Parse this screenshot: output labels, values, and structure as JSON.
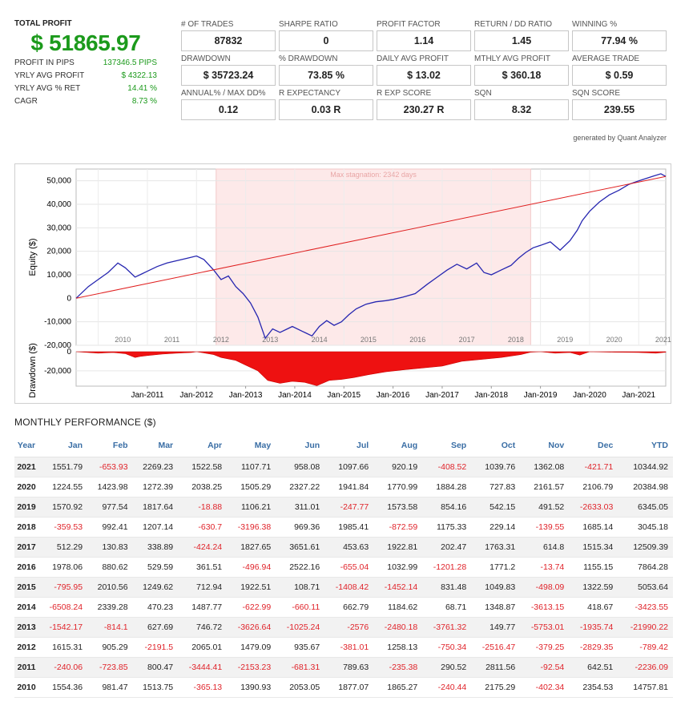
{
  "summary": {
    "total_label": "TOTAL PROFIT",
    "total_value": "$ 51865.97",
    "rows": [
      {
        "label": "PROFIT IN PIPS",
        "value": "137346.5 PIPS"
      },
      {
        "label": "YRLY AVG PROFIT",
        "value": "$ 4322.13"
      },
      {
        "label": "YRLY AVG % RET",
        "value": "14.41 %"
      },
      {
        "label": "CAGR",
        "value": "8.73 %"
      }
    ]
  },
  "stats": [
    {
      "label": "# OF TRADES",
      "value": "87832"
    },
    {
      "label": "SHARPE RATIO",
      "value": "0"
    },
    {
      "label": "PROFIT FACTOR",
      "value": "1.14"
    },
    {
      "label": "RETURN / DD RATIO",
      "value": "1.45"
    },
    {
      "label": "WINNING %",
      "value": "77.94 %"
    },
    {
      "label": "DRAWDOWN",
      "value": "$ 35723.24"
    },
    {
      "label": "% DRAWDOWN",
      "value": "73.85 %"
    },
    {
      "label": "DAILY AVG PROFIT",
      "value": "$ 13.02"
    },
    {
      "label": "MTHLY AVG PROFIT",
      "value": "$ 360.18"
    },
    {
      "label": "AVERAGE TRADE",
      "value": "$ 0.59"
    },
    {
      "label": "ANNUAL% / MAX DD%",
      "value": "0.12"
    },
    {
      "label": "R EXPECTANCY",
      "value": "0.03 R"
    },
    {
      "label": "R EXP SCORE",
      "value": "230.27 R"
    },
    {
      "label": "SQN",
      "value": "8.32"
    },
    {
      "label": "SQN SCORE",
      "value": "239.55"
    }
  ],
  "generated_by": "generated by Quant Analyzer",
  "chart_data": [
    {
      "type": "line",
      "ylabel": "Equity ($)",
      "ylim": [
        -20000,
        55000
      ],
      "yticks": [
        50000,
        40000,
        30000,
        20000,
        10000,
        0,
        -10000,
        -20000
      ],
      "ytick_labels": [
        "50,000",
        "40,000",
        "30,000",
        "20,000",
        "10,000",
        "0",
        "-10,000",
        "-20,000"
      ],
      "xlim": [
        2009.55,
        2021.55
      ],
      "year_labels": [
        "2010",
        "2011",
        "2012",
        "2013",
        "2014",
        "2015",
        "2016",
        "2017",
        "2018",
        "2019",
        "2020",
        "2021"
      ],
      "annotation": "Max stagnation: 2342 days",
      "stagnation": {
        "start": 2012.4,
        "end": 2018.8
      },
      "grid": true,
      "series": [
        {
          "role": "equity",
          "color": "#2626b0",
          "x": [
            2009.55,
            2009.8,
            2010.0,
            2010.2,
            2010.4,
            2010.55,
            2010.75,
            2010.85,
            2011.0,
            2011.2,
            2011.4,
            2011.6,
            2011.8,
            2012.0,
            2012.15,
            2012.35,
            2012.5,
            2012.65,
            2012.8,
            2012.95,
            2013.1,
            2013.25,
            2013.4,
            2013.55,
            2013.7,
            2013.85,
            2013.95,
            2014.15,
            2014.35,
            2014.5,
            2014.65,
            2014.8,
            2014.95,
            2015.1,
            2015.25,
            2015.45,
            2015.65,
            2015.85,
            2016.0,
            2016.2,
            2016.45,
            2016.7,
            2016.9,
            2017.1,
            2017.3,
            2017.5,
            2017.7,
            2017.85,
            2018.0,
            2018.2,
            2018.4,
            2018.55,
            2018.7,
            2018.85,
            2019.0,
            2019.2,
            2019.4,
            2019.6,
            2019.75,
            2019.85,
            2020.0,
            2020.2,
            2020.4,
            2020.6,
            2020.8,
            2021.0,
            2021.15,
            2021.3,
            2021.45,
            2021.55
          ],
          "y": [
            0,
            5000,
            8000,
            11000,
            15000,
            13000,
            9000,
            10000,
            11500,
            13500,
            15000,
            16000,
            17000,
            18000,
            16500,
            12000,
            8000,
            9500,
            5000,
            2000,
            -2000,
            -8000,
            -17000,
            -13000,
            -14500,
            -13000,
            -12000,
            -14000,
            -16000,
            -12000,
            -9500,
            -11500,
            -10000,
            -7000,
            -4500,
            -2500,
            -1500,
            -1000,
            -500,
            500,
            2000,
            6000,
            9000,
            12000,
            14500,
            12500,
            15000,
            11000,
            10000,
            12000,
            14000,
            17000,
            19500,
            21500,
            22500,
            24000,
            20500,
            24500,
            29000,
            33000,
            37000,
            41000,
            44000,
            46000,
            48500,
            50000,
            51000,
            52000,
            53000,
            51866
          ]
        },
        {
          "role": "trend",
          "color": "#e02020",
          "x": [
            2009.55,
            2021.55
          ],
          "y": [
            0,
            51866
          ]
        }
      ]
    },
    {
      "type": "area",
      "ylabel": "Drawdown ($)",
      "ylim": [
        -36000,
        0
      ],
      "yticks": [
        0,
        -20000
      ],
      "ytick_labels": [
        "0",
        "-20,000"
      ],
      "xlim": [
        2009.55,
        2021.55
      ],
      "xtick_labels": [
        "Jan-2011",
        "Jan-2012",
        "Jan-2013",
        "Jan-2014",
        "Jan-2015",
        "Jan-2016",
        "Jan-2017",
        "Jan-2018",
        "Jan-2019",
        "Jan-2020",
        "Jan-2021"
      ],
      "xtick_values": [
        2011.0,
        2012.0,
        2013.0,
        2014.0,
        2015.0,
        2016.0,
        2017.0,
        2018.0,
        2019.0,
        2020.0,
        2021.0
      ],
      "color": "#ee1111",
      "series": [
        {
          "role": "drawdown",
          "x": [
            2009.55,
            2010.0,
            2010.3,
            2010.55,
            2010.75,
            2010.85,
            2011.0,
            2011.3,
            2011.6,
            2011.9,
            2012.0,
            2012.35,
            2012.5,
            2012.8,
            2013.0,
            2013.25,
            2013.45,
            2013.7,
            2013.95,
            2014.2,
            2014.45,
            2014.7,
            2014.95,
            2015.2,
            2015.5,
            2015.85,
            2016.2,
            2016.6,
            2017.0,
            2017.4,
            2017.8,
            2018.2,
            2018.6,
            2018.8,
            2019.0,
            2019.3,
            2019.6,
            2019.8,
            2020.0,
            2020.5,
            2021.0,
            2021.35,
            2021.55
          ],
          "y": [
            0,
            -1500,
            -800,
            -2000,
            -6000,
            -5000,
            -4000,
            -2500,
            -1500,
            -800,
            0,
            -3000,
            -6000,
            -9000,
            -14000,
            -20000,
            -30000,
            -33000,
            -31000,
            -32000,
            -35500,
            -30000,
            -29000,
            -27000,
            -24000,
            -21000,
            -19000,
            -17000,
            -15000,
            -10000,
            -8000,
            -6000,
            -3000,
            -500,
            0,
            -1500,
            -800,
            -3500,
            0,
            -500,
            -800,
            -1500,
            -500
          ]
        }
      ]
    }
  ],
  "monthly": {
    "title": "MONTHLY PERFORMANCE ($)",
    "headers": [
      "Year",
      "Jan",
      "Feb",
      "Mar",
      "Apr",
      "May",
      "Jun",
      "Jul",
      "Aug",
      "Sep",
      "Oct",
      "Nov",
      "Dec",
      "YTD"
    ],
    "rows": [
      [
        "2021",
        "1551.79",
        "-653.93",
        "2269.23",
        "1522.58",
        "1107.71",
        "958.08",
        "1097.66",
        "920.19",
        "-408.52",
        "1039.76",
        "1362.08",
        "-421.71",
        "10344.92"
      ],
      [
        "2020",
        "1224.55",
        "1423.98",
        "1272.39",
        "2038.25",
        "1505.29",
        "2327.22",
        "1941.84",
        "1770.99",
        "1884.28",
        "727.83",
        "2161.57",
        "2106.79",
        "20384.98"
      ],
      [
        "2019",
        "1570.92",
        "977.54",
        "1817.64",
        "-18.88",
        "1106.21",
        "311.01",
        "-247.77",
        "1573.58",
        "854.16",
        "542.15",
        "491.52",
        "-2633.03",
        "6345.05"
      ],
      [
        "2018",
        "-359.53",
        "992.41",
        "1207.14",
        "-630.7",
        "-3196.38",
        "969.36",
        "1985.41",
        "-872.59",
        "1175.33",
        "229.14",
        "-139.55",
        "1685.14",
        "3045.18"
      ],
      [
        "2017",
        "512.29",
        "130.83",
        "338.89",
        "-424.24",
        "1827.65",
        "3651.61",
        "453.63",
        "1922.81",
        "202.47",
        "1763.31",
        "614.8",
        "1515.34",
        "12509.39"
      ],
      [
        "2016",
        "1978.06",
        "880.62",
        "529.59",
        "361.51",
        "-496.94",
        "2522.16",
        "-655.04",
        "1032.99",
        "-1201.28",
        "1771.2",
        "-13.74",
        "1155.15",
        "7864.28"
      ],
      [
        "2015",
        "-795.95",
        "2010.56",
        "1249.62",
        "712.94",
        "1922.51",
        "108.71",
        "-1408.42",
        "-1452.14",
        "831.48",
        "1049.83",
        "-498.09",
        "1322.59",
        "5053.64"
      ],
      [
        "2014",
        "-6508.24",
        "2339.28",
        "470.23",
        "1487.77",
        "-622.99",
        "-660.11",
        "662.79",
        "1184.62",
        "68.71",
        "1348.87",
        "-3613.15",
        "418.67",
        "-3423.55"
      ],
      [
        "2013",
        "-1542.17",
        "-814.1",
        "627.69",
        "746.72",
        "-3626.64",
        "-1025.24",
        "-2576",
        "-2480.18",
        "-3761.32",
        "149.77",
        "-5753.01",
        "-1935.74",
        "-21990.22"
      ],
      [
        "2012",
        "1615.31",
        "905.29",
        "-2191.5",
        "2065.01",
        "1479.09",
        "935.67",
        "-381.01",
        "1258.13",
        "-750.34",
        "-2516.47",
        "-379.25",
        "-2829.35",
        "-789.42"
      ],
      [
        "2011",
        "-240.06",
        "-723.85",
        "800.47",
        "-3444.41",
        "-2153.23",
        "-681.31",
        "789.63",
        "-235.38",
        "290.52",
        "2811.56",
        "-92.54",
        "642.51",
        "-2236.09"
      ],
      [
        "2010",
        "1554.36",
        "981.47",
        "1513.75",
        "-365.13",
        "1390.93",
        "2053.05",
        "1877.07",
        "1865.27",
        "-240.44",
        "2175.29",
        "-402.34",
        "2354.53",
        "14757.81"
      ]
    ]
  },
  "colors": {
    "positive": "#1c9a1c",
    "negative": "#e0232a",
    "header": "#3a6ea5",
    "stagnation_fill": "#fde9e9"
  }
}
